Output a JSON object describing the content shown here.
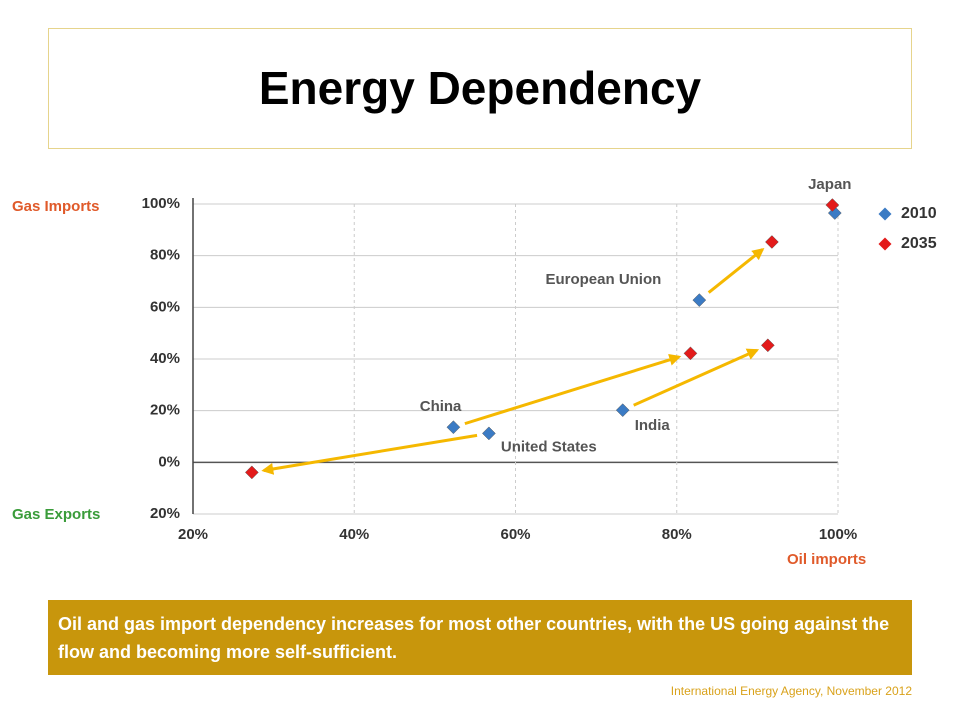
{
  "title": "Energy Dependency",
  "chart_data": {
    "type": "scatter",
    "y_label_top": "Gas Imports",
    "y_label_bottom": "Gas Exports",
    "x_label": "Oil imports",
    "labels": [
      "Japan",
      "European Union",
      "China",
      "United States",
      "India"
    ],
    "series": [
      {
        "name": "2010",
        "color": "#3b7bc4",
        "x": [
          99.6,
          82.8,
          52.3,
          56.7,
          73.3
        ],
        "values": [
          96.5,
          62.8,
          13.6,
          11.2,
          20.2
        ]
      },
      {
        "name": "2035",
        "color": "#e31b1b",
        "x": [
          99.3,
          91.8,
          81.7,
          27.3,
          91.3
        ],
        "values": [
          99.6,
          85.3,
          42.2,
          -3.9,
          45.3
        ]
      }
    ],
    "xlim": [
      20,
      100
    ],
    "ylim": [
      -20,
      100
    ],
    "xticks": [
      {
        "value": 20,
        "label": "20%"
      },
      {
        "value": 40,
        "label": "40%"
      },
      {
        "value": 60,
        "label": "60%"
      },
      {
        "value": 80,
        "label": "80%"
      },
      {
        "value": 100,
        "label": "100%"
      }
    ],
    "yticks": [
      {
        "value": -20,
        "label": "20%"
      },
      {
        "value": 0,
        "label": "0%"
      },
      {
        "value": 20,
        "label": "20%"
      },
      {
        "value": 40,
        "label": "40%"
      },
      {
        "value": 60,
        "label": "60%"
      },
      {
        "value": 80,
        "label": "80%"
      },
      {
        "value": 100,
        "label": "100%"
      }
    ],
    "grid": true,
    "legend": "right"
  },
  "caption": "Oil and gas import dependency increases for most other countries, with the US going against the flow and becoming more self-sufficient.",
  "source": "International Energy Agency, November 2012"
}
